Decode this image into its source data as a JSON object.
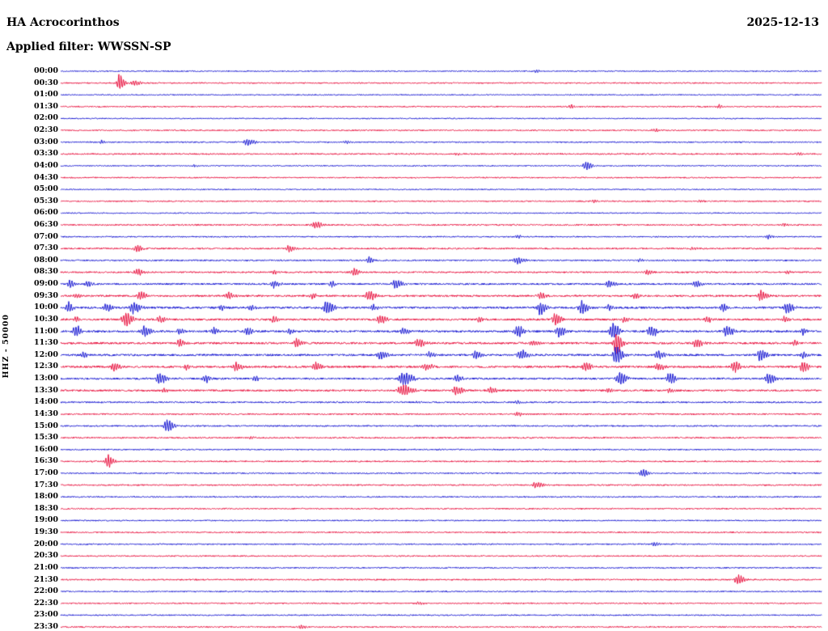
{
  "chart_data": {
    "type": "line",
    "subtype": "seismogram_helicorder",
    "title": "HA Acrocorinthos",
    "date": "2025-12-13",
    "filter_label": "Applied filter: WWSSN-SP",
    "ylabel": "HHZ - 50000",
    "axis": {
      "rows": 48,
      "minutes_per_row": 30,
      "first_row_label": "00:00",
      "last_row_label": "23:30",
      "grid": false,
      "legend": "none"
    },
    "colors": {
      "blue": "#1616d1",
      "red": "#e8123f"
    },
    "rows": [
      {
        "t": "00:00",
        "c": "b",
        "n": 0.7,
        "e": [
          [
            0.625,
            2.5,
            0.004
          ]
        ]
      },
      {
        "t": "00:30",
        "c": "r",
        "n": 0.8,
        "e": [
          [
            0.077,
            13,
            0.005
          ],
          [
            0.095,
            3.5,
            0.008
          ]
        ]
      },
      {
        "t": "01:00",
        "c": "b",
        "n": 0.7,
        "e": []
      },
      {
        "t": "01:30",
        "c": "r",
        "n": 0.8,
        "e": [
          [
            0.67,
            2.5,
            0.004
          ],
          [
            0.865,
            3,
            0.005
          ]
        ]
      },
      {
        "t": "02:00",
        "c": "b",
        "n": 0.7,
        "e": []
      },
      {
        "t": "02:30",
        "c": "r",
        "n": 0.8,
        "e": [
          [
            0.78,
            2.5,
            0.006
          ]
        ]
      },
      {
        "t": "03:00",
        "c": "b",
        "n": 0.8,
        "e": [
          [
            0.054,
            3,
            0.004
          ],
          [
            0.245,
            4.5,
            0.009
          ],
          [
            0.375,
            2,
            0.005
          ]
        ]
      },
      {
        "t": "03:30",
        "c": "r",
        "n": 0.9,
        "e": [
          [
            0.52,
            2,
            0.004
          ],
          [
            0.97,
            2.5,
            0.005
          ]
        ]
      },
      {
        "t": "04:00",
        "c": "b",
        "n": 0.7,
        "e": [
          [
            0.175,
            2,
            0.004
          ],
          [
            0.69,
            5.5,
            0.007
          ]
        ]
      },
      {
        "t": "04:30",
        "c": "r",
        "n": 0.8,
        "e": []
      },
      {
        "t": "05:00",
        "c": "b",
        "n": 0.7,
        "e": []
      },
      {
        "t": "05:30",
        "c": "r",
        "n": 0.8,
        "e": [
          [
            0.7,
            2.5,
            0.005
          ],
          [
            0.84,
            2,
            0.004
          ]
        ]
      },
      {
        "t": "06:00",
        "c": "b",
        "n": 0.7,
        "e": []
      },
      {
        "t": "06:30",
        "c": "r",
        "n": 0.9,
        "e": [
          [
            0.335,
            5,
            0.008
          ],
          [
            0.95,
            2,
            0.004
          ]
        ]
      },
      {
        "t": "07:00",
        "c": "b",
        "n": 0.8,
        "e": [
          [
            0.6,
            1.8,
            0.006
          ],
          [
            0.93,
            3,
            0.005
          ]
        ]
      },
      {
        "t": "07:30",
        "c": "r",
        "n": 1.0,
        "e": [
          [
            0.1,
            6,
            0.006
          ],
          [
            0.3,
            4.5,
            0.007
          ],
          [
            0.83,
            2.2,
            0.005
          ]
        ]
      },
      {
        "t": "08:00",
        "c": "b",
        "n": 0.9,
        "e": [
          [
            0.405,
            5,
            0.005
          ],
          [
            0.6,
            5,
            0.008
          ],
          [
            0.76,
            2.5,
            0.004
          ]
        ]
      },
      {
        "t": "08:30",
        "c": "r",
        "n": 1.0,
        "e": [
          [
            0.1,
            5,
            0.007
          ],
          [
            0.28,
            3,
            0.005
          ],
          [
            0.385,
            5.5,
            0.006
          ],
          [
            0.77,
            3,
            0.006
          ],
          [
            0.955,
            2.5,
            0.004
          ]
        ]
      },
      {
        "t": "09:00",
        "c": "b",
        "n": 1.1,
        "e": [
          [
            0.012,
            6,
            0.005
          ],
          [
            0.035,
            5,
            0.005
          ],
          [
            0.28,
            5,
            0.007
          ],
          [
            0.355,
            4,
            0.005
          ],
          [
            0.44,
            7,
            0.007
          ],
          [
            0.72,
            5,
            0.007
          ],
          [
            0.835,
            5,
            0.006
          ]
        ]
      },
      {
        "t": "09:30",
        "c": "r",
        "n": 1.2,
        "e": [
          [
            0.02,
            3,
            0.005
          ],
          [
            0.105,
            6,
            0.007
          ],
          [
            0.22,
            5,
            0.007
          ],
          [
            0.33,
            4,
            0.005
          ],
          [
            0.405,
            7,
            0.008
          ],
          [
            0.63,
            5,
            0.007
          ],
          [
            0.755,
            4,
            0.006
          ],
          [
            0.92,
            7,
            0.007
          ]
        ]
      },
      {
        "t": "10:00",
        "c": "b",
        "n": 1.3,
        "e": [
          [
            0.01,
            7,
            0.005
          ],
          [
            0.06,
            7,
            0.006
          ],
          [
            0.095,
            8,
            0.008
          ],
          [
            0.21,
            4,
            0.005
          ],
          [
            0.25,
            4,
            0.006
          ],
          [
            0.35,
            9,
            0.008
          ],
          [
            0.41,
            5,
            0.006
          ],
          [
            0.63,
            9,
            0.007
          ],
          [
            0.685,
            9,
            0.007
          ],
          [
            0.72,
            5,
            0.005
          ],
          [
            0.87,
            5,
            0.006
          ],
          [
            0.955,
            8,
            0.007
          ]
        ]
      },
      {
        "t": "10:30",
        "c": "r",
        "n": 1.3,
        "e": [
          [
            0.02,
            4,
            0.005
          ],
          [
            0.085,
            10,
            0.008
          ],
          [
            0.13,
            5,
            0.006
          ],
          [
            0.28,
            4,
            0.006
          ],
          [
            0.42,
            6,
            0.007
          ],
          [
            0.55,
            4,
            0.005
          ],
          [
            0.65,
            8,
            0.007
          ],
          [
            0.74,
            4,
            0.006
          ],
          [
            0.85,
            4,
            0.006
          ],
          [
            0.95,
            4,
            0.005
          ]
        ]
      },
      {
        "t": "11:00",
        "c": "b",
        "n": 1.3,
        "e": [
          [
            0.02,
            8,
            0.006
          ],
          [
            0.11,
            8,
            0.007
          ],
          [
            0.155,
            5,
            0.005
          ],
          [
            0.2,
            6,
            0.006
          ],
          [
            0.245,
            6,
            0.006
          ],
          [
            0.3,
            4,
            0.005
          ],
          [
            0.45,
            5,
            0.006
          ],
          [
            0.6,
            8,
            0.007
          ],
          [
            0.655,
            8,
            0.007
          ],
          [
            0.725,
            12,
            0.007
          ],
          [
            0.775,
            8,
            0.007
          ],
          [
            0.875,
            8,
            0.007
          ],
          [
            0.975,
            5,
            0.005
          ]
        ]
      },
      {
        "t": "11:30",
        "c": "r",
        "n": 1.3,
        "e": [
          [
            0.155,
            6,
            0.006
          ],
          [
            0.31,
            6,
            0.007
          ],
          [
            0.47,
            6,
            0.007
          ],
          [
            0.62,
            4,
            0.006
          ],
          [
            0.73,
            16,
            0.006
          ],
          [
            0.835,
            6,
            0.007
          ],
          [
            0.965,
            4,
            0.005
          ]
        ]
      },
      {
        "t": "12:00",
        "c": "b",
        "n": 1.3,
        "e": [
          [
            0.03,
            4,
            0.005
          ],
          [
            0.42,
            6,
            0.007
          ],
          [
            0.485,
            4,
            0.006
          ],
          [
            0.545,
            5,
            0.006
          ],
          [
            0.605,
            8,
            0.007
          ],
          [
            0.73,
            13,
            0.007
          ],
          [
            0.785,
            6,
            0.007
          ],
          [
            0.92,
            8,
            0.007
          ],
          [
            0.975,
            5,
            0.005
          ]
        ]
      },
      {
        "t": "12:30",
        "c": "r",
        "n": 1.3,
        "e": [
          [
            0.07,
            6,
            0.007
          ],
          [
            0.165,
            4,
            0.006
          ],
          [
            0.23,
            6,
            0.007
          ],
          [
            0.335,
            6,
            0.007
          ],
          [
            0.48,
            5,
            0.007
          ],
          [
            0.69,
            6,
            0.007
          ],
          [
            0.785,
            5,
            0.007
          ],
          [
            0.885,
            8,
            0.007
          ],
          [
            0.975,
            8,
            0.006
          ]
        ]
      },
      {
        "t": "13:00",
        "c": "b",
        "n": 1.2,
        "e": [
          [
            0.13,
            8,
            0.007
          ],
          [
            0.19,
            5,
            0.006
          ],
          [
            0.255,
            4,
            0.005
          ],
          [
            0.45,
            9,
            0.01
          ],
          [
            0.52,
            5,
            0.006
          ],
          [
            0.735,
            8,
            0.008
          ],
          [
            0.8,
            8,
            0.007
          ],
          [
            0.93,
            8,
            0.007
          ]
        ]
      },
      {
        "t": "13:30",
        "c": "r",
        "n": 1.2,
        "e": [
          [
            0.135,
            3,
            0.005
          ],
          [
            0.45,
            9,
            0.01
          ],
          [
            0.52,
            6,
            0.007
          ],
          [
            0.565,
            5,
            0.006
          ],
          [
            0.72,
            3,
            0.006
          ],
          [
            0.8,
            3,
            0.005
          ]
        ]
      },
      {
        "t": "14:00",
        "c": "b",
        "n": 1.0,
        "e": [
          [
            0.47,
            2,
            0.005
          ],
          [
            0.6,
            2,
            0.005
          ]
        ]
      },
      {
        "t": "14:30",
        "c": "r",
        "n": 0.9,
        "e": [
          [
            0.6,
            3,
            0.005
          ]
        ]
      },
      {
        "t": "15:00",
        "c": "b",
        "n": 0.9,
        "e": [
          [
            0.14,
            9,
            0.007
          ]
        ]
      },
      {
        "t": "15:30",
        "c": "r",
        "n": 0.9,
        "e": [
          [
            0.25,
            1.5,
            0.005
          ]
        ]
      },
      {
        "t": "16:00",
        "c": "b",
        "n": 0.8,
        "e": []
      },
      {
        "t": "16:30",
        "c": "r",
        "n": 0.9,
        "e": [
          [
            0.062,
            8,
            0.006
          ]
        ]
      },
      {
        "t": "17:00",
        "c": "b",
        "n": 0.8,
        "e": [
          [
            0.765,
            5,
            0.007
          ]
        ]
      },
      {
        "t": "17:30",
        "c": "r",
        "n": 0.9,
        "e": [
          [
            0.625,
            4,
            0.009
          ]
        ]
      },
      {
        "t": "18:00",
        "c": "b",
        "n": 0.8,
        "e": []
      },
      {
        "t": "18:30",
        "c": "r",
        "n": 0.8,
        "e": []
      },
      {
        "t": "19:00",
        "c": "b",
        "n": 0.8,
        "e": []
      },
      {
        "t": "19:30",
        "c": "r",
        "n": 0.8,
        "e": []
      },
      {
        "t": "20:00",
        "c": "b",
        "n": 0.8,
        "e": [
          [
            0.78,
            3,
            0.006
          ]
        ]
      },
      {
        "t": "20:30",
        "c": "r",
        "n": 0.8,
        "e": []
      },
      {
        "t": "21:00",
        "c": "b",
        "n": 0.8,
        "e": []
      },
      {
        "t": "21:30",
        "c": "r",
        "n": 0.9,
        "e": [
          [
            0.89,
            7,
            0.007
          ]
        ]
      },
      {
        "t": "22:00",
        "c": "b",
        "n": 0.8,
        "e": []
      },
      {
        "t": "22:30",
        "c": "r",
        "n": 0.8,
        "e": [
          [
            0.47,
            3,
            0.005
          ]
        ]
      },
      {
        "t": "23:00",
        "c": "b",
        "n": 0.8,
        "e": []
      },
      {
        "t": "23:30",
        "c": "r",
        "n": 0.8,
        "e": [
          [
            0.315,
            3,
            0.006
          ]
        ]
      }
    ]
  }
}
